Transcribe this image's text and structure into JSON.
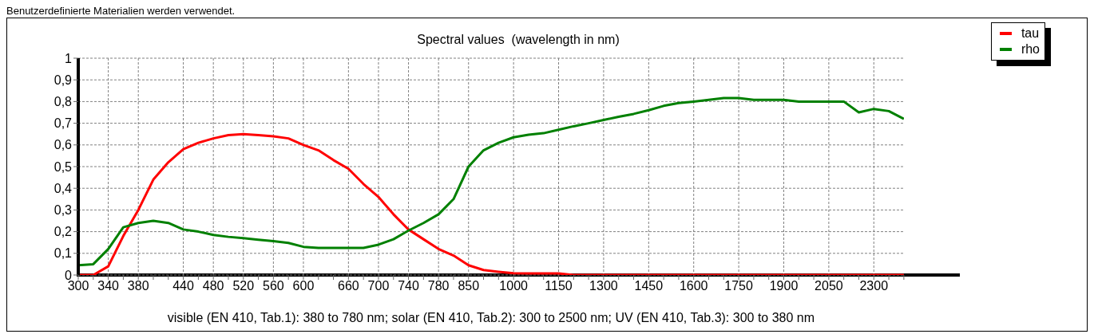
{
  "chart_data": {
    "type": "line",
    "title": "Spectral values  (wavelength in nm)",
    "xlabel": "visible (EN 410, Tab.1): 380 to 780 nm;  solar (EN 410, Tab.2): 300 to 2500 nm; UV (EN 410, Tab.3): 300 to 380 nm",
    "annotations": [
      "Benutzerdefinierte Materialien werden verwendet."
    ],
    "categories": [
      "300",
      null,
      "340",
      null,
      "380",
      null,
      null,
      "440",
      null,
      "480",
      null,
      "520",
      null,
      "560",
      null,
      "600",
      null,
      null,
      "660",
      null,
      "700",
      null,
      "740",
      null,
      "780",
      null,
      "850",
      null,
      null,
      "1000",
      null,
      null,
      "1150",
      null,
      null,
      "1300",
      null,
      null,
      "1450",
      null,
      null,
      "1600",
      null,
      null,
      "1750",
      null,
      null,
      "1900",
      null,
      null,
      "2050",
      null,
      null,
      "2300",
      null,
      null
    ],
    "series": [
      {
        "name": "tau",
        "color": "#ff0000",
        "values": [
          0,
          0,
          0.04,
          0.18,
          0.3,
          0.44,
          0.52,
          0.58,
          0.61,
          0.63,
          0.645,
          0.65,
          0.645,
          0.64,
          0.63,
          0.6,
          0.575,
          0.53,
          0.49,
          0.42,
          0.36,
          0.28,
          0.21,
          0.165,
          0.12,
          0.09,
          0.045,
          0.023,
          0.015,
          0.008,
          0.007,
          0.007,
          0.007,
          0,
          0,
          0,
          0,
          0,
          0,
          0,
          0,
          0,
          0,
          0,
          0,
          0,
          0,
          0,
          0,
          0,
          0,
          0,
          0,
          0,
          0,
          0
        ]
      },
      {
        "name": "rho",
        "color": "#008000",
        "values": [
          0.045,
          0.05,
          0.12,
          0.22,
          0.24,
          0.25,
          0.24,
          0.21,
          0.2,
          0.185,
          0.176,
          0.17,
          0.163,
          0.156,
          0.148,
          0.13,
          0.125,
          0.125,
          0.125,
          0.125,
          0.14,
          0.165,
          0.205,
          0.24,
          0.28,
          0.35,
          0.5,
          0.575,
          0.61,
          0.635,
          0.647,
          0.654,
          0.67,
          0.686,
          0.7,
          0.715,
          0.73,
          0.743,
          0.76,
          0.78,
          0.793,
          0.8,
          0.808,
          0.816,
          0.816,
          0.808,
          0.808,
          0.808,
          0.8,
          0.8,
          0.8,
          0.8,
          0.75,
          0.766,
          0.756,
          0.72
        ]
      }
    ],
    "ylim": [
      0,
      1
    ],
    "yticks": [
      {
        "value": 0,
        "label": "0"
      },
      {
        "value": 0.1,
        "label": "0,1"
      },
      {
        "value": 0.2,
        "label": "0,2"
      },
      {
        "value": 0.3,
        "label": "0,3"
      },
      {
        "value": 0.4,
        "label": "0,4"
      },
      {
        "value": 0.5,
        "label": "0,5"
      },
      {
        "value": 0.6,
        "label": "0,6"
      },
      {
        "value": 0.7,
        "label": "0,7"
      },
      {
        "value": 0.8,
        "label": "0,8"
      },
      {
        "value": 0.9,
        "label": "0,9"
      },
      {
        "value": 1,
        "label": "1"
      }
    ],
    "grid": true,
    "legend": "top right"
  }
}
